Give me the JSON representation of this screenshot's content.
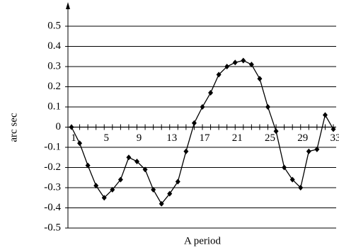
{
  "chart_data": {
    "type": "line",
    "x_label": "A period",
    "y_label": "arc sec",
    "categories": [
      "1",
      null,
      null,
      null,
      "5",
      null,
      null,
      null,
      "9",
      null,
      null,
      null,
      "13",
      null,
      null,
      null,
      "17",
      null,
      null,
      null,
      "21",
      null,
      null,
      null,
      "25",
      null,
      null,
      null,
      "29",
      null,
      null,
      null,
      "33"
    ],
    "values": [
      0,
      -0.08,
      -0.19,
      -0.29,
      -0.35,
      -0.31,
      -0.26,
      -0.15,
      -0.17,
      -0.21,
      -0.31,
      -0.38,
      -0.33,
      -0.27,
      -0.12,
      0.02,
      0.1,
      0.17,
      0.26,
      0.3,
      0.32,
      0.33,
      0.31,
      0.24,
      0.1,
      -0.02,
      -0.2,
      -0.26,
      -0.3,
      -0.12,
      -0.11,
      0.06,
      -0.01
    ],
    "color": "#000000",
    "ylim": [
      -0.5,
      0.5
    ],
    "yticks": [
      -0.5,
      -0.4,
      -0.3,
      -0.2,
      -0.1,
      0,
      0.1,
      0.2,
      0.3,
      0.4,
      0.5
    ],
    "grid": true
  }
}
